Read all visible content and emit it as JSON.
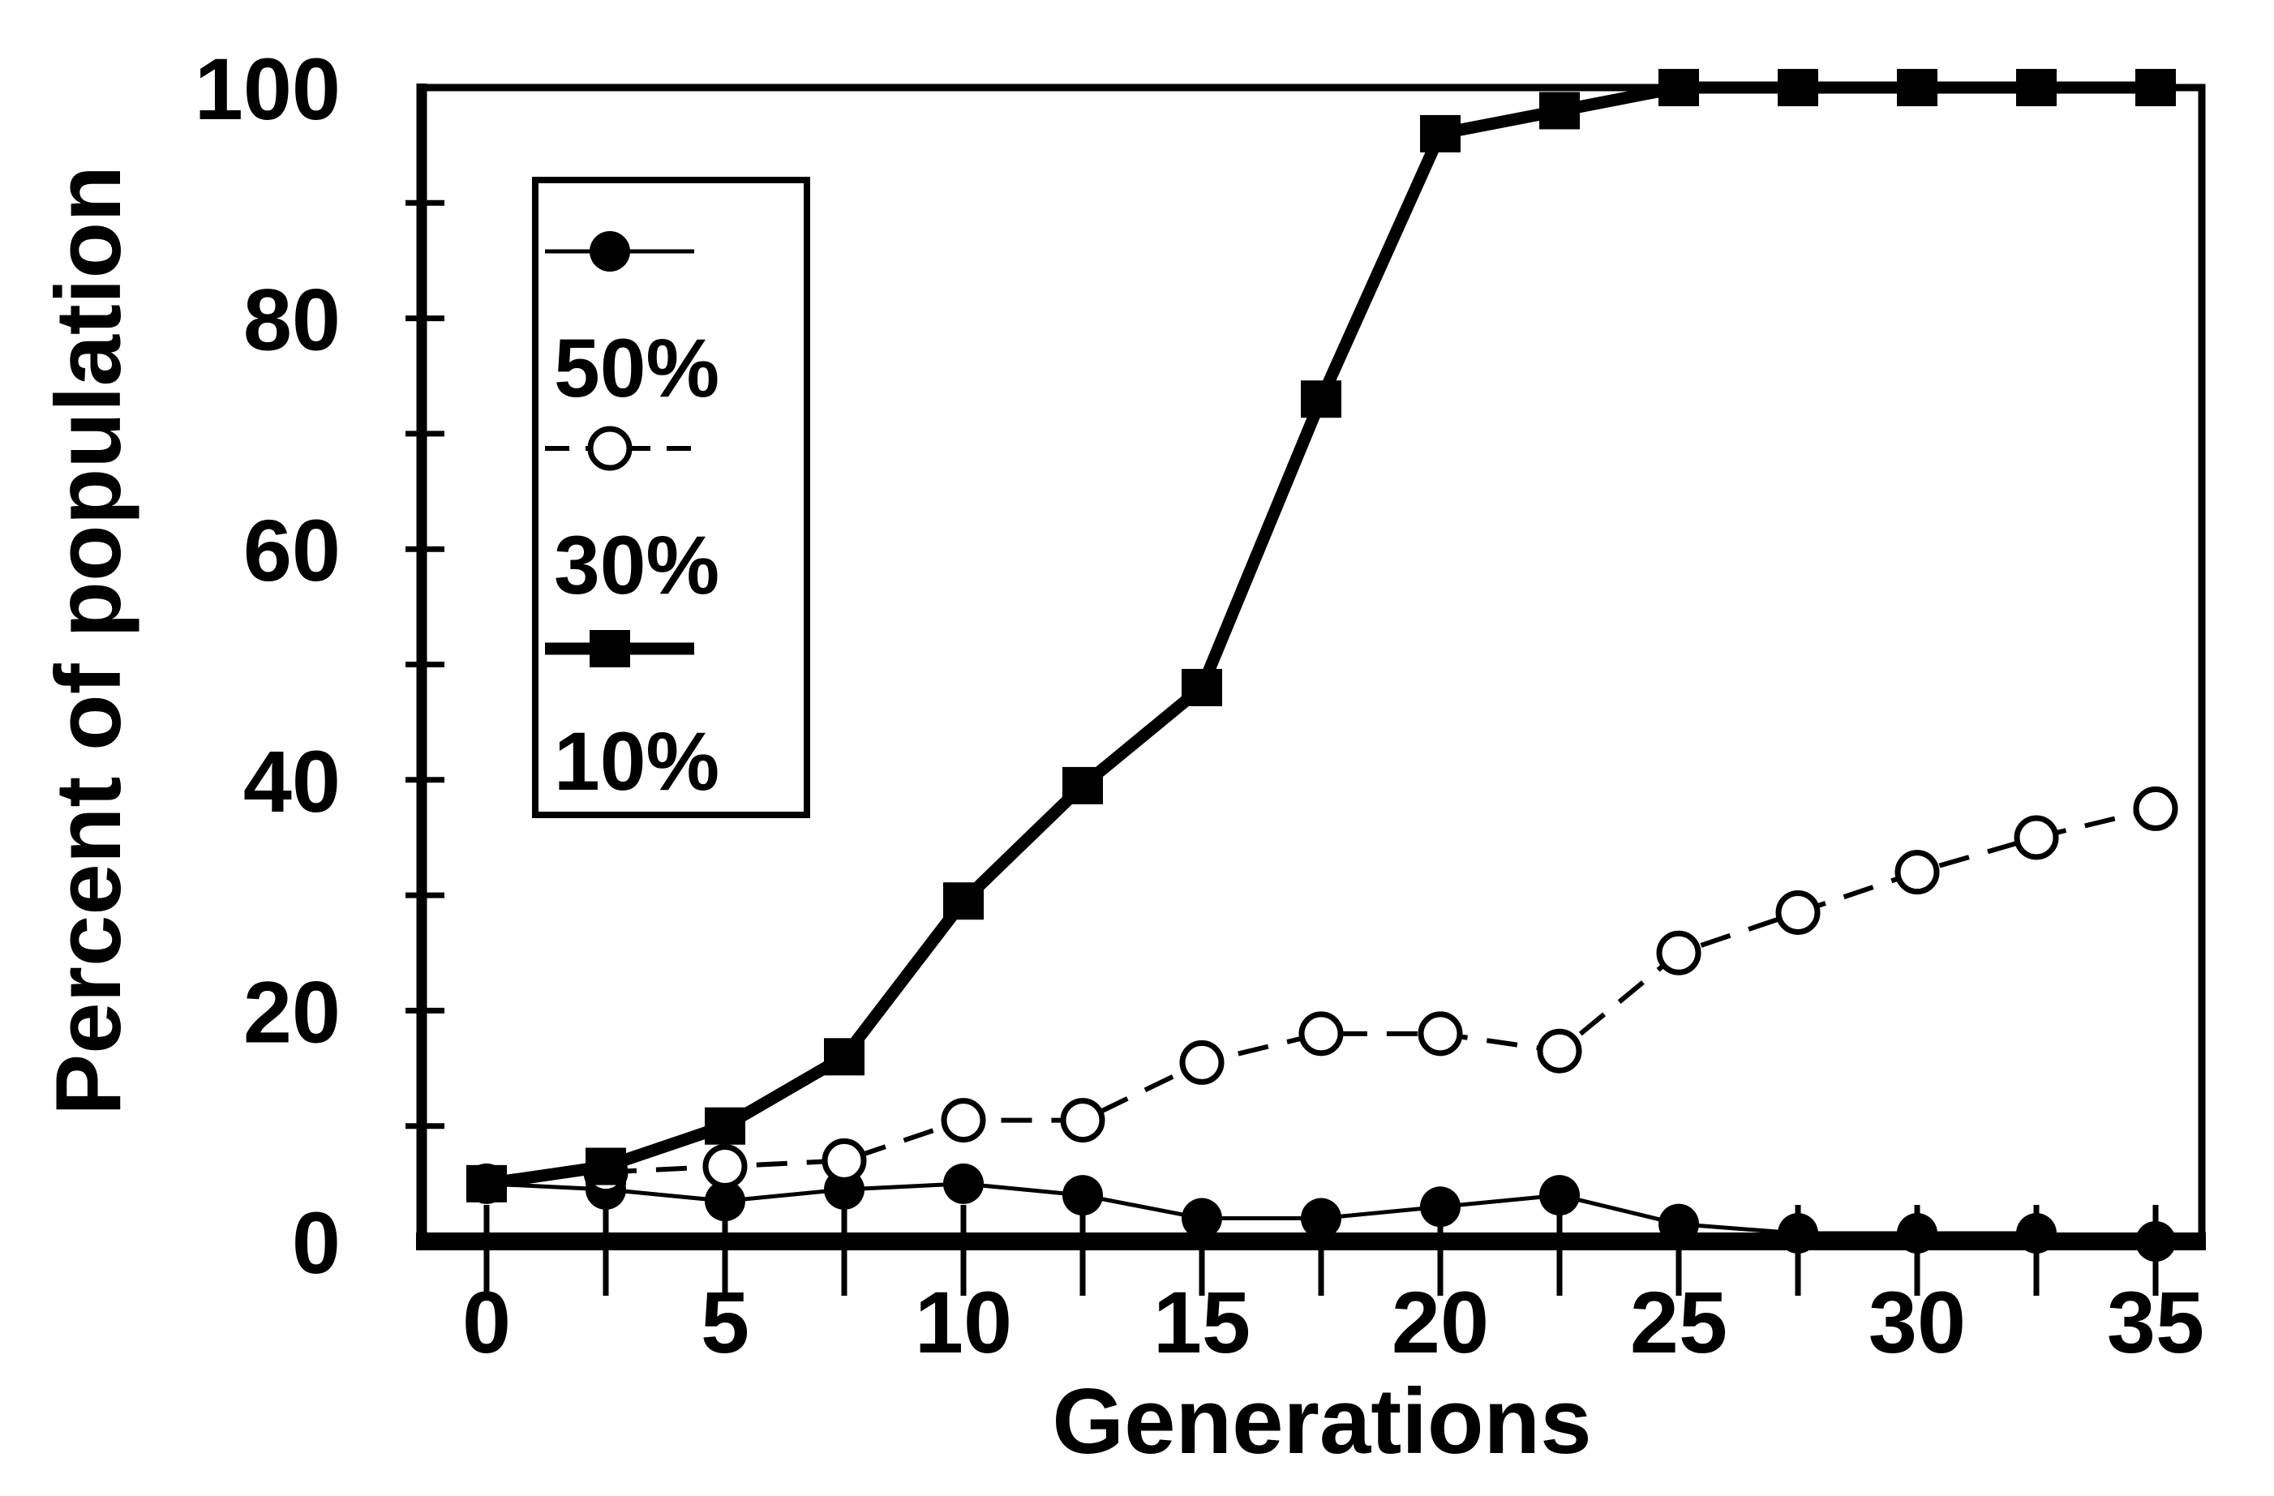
{
  "figure": {
    "background_color": "#ffffff",
    "ink_color": "#000000"
  },
  "chart_data": {
    "type": "line",
    "title": "",
    "xlabel": "Generations",
    "ylabel": "Percent of population",
    "xlim": [
      0,
      35
    ],
    "ylim": [
      0,
      100
    ],
    "grid": false,
    "x_tick_interval": 2.5,
    "x_tick_labels": [
      0,
      5,
      10,
      15,
      20,
      25,
      30,
      35
    ],
    "y_tick_interval": 10,
    "y_tick_labels": [
      0,
      20,
      40,
      60,
      80,
      100
    ],
    "legend": {
      "position": "upper-left-inside",
      "entries": [
        "50%",
        "30%",
        "10%"
      ]
    },
    "series": [
      {
        "name": "50%",
        "marker": "filled-circle",
        "line_style": "solid-thin",
        "x": [
          0,
          2.5,
          5,
          7.5,
          10,
          12.5,
          15,
          17.5,
          20,
          22.5,
          25,
          27.5,
          30,
          32.5,
          35
        ],
        "y": [
          5,
          4.5,
          3.5,
          4.5,
          5,
          4,
          2,
          2,
          3,
          4,
          1.5,
          0.7,
          0.7,
          0.7,
          0
        ]
      },
      {
        "name": "30%",
        "marker": "open-circle",
        "line_style": "dashed",
        "x": [
          2.5,
          5,
          7.5,
          10,
          12.5,
          15,
          17.5,
          20,
          22.5,
          25,
          27.5,
          30,
          32.5,
          35
        ],
        "y": [
          6,
          6.5,
          7,
          10.5,
          10.5,
          15.5,
          18,
          18,
          16.5,
          25,
          28.5,
          32,
          35,
          37.5
        ]
      },
      {
        "name": "10%",
        "marker": "filled-square",
        "line_style": "solid-thick",
        "x": [
          0,
          2.5,
          5,
          7.5,
          10,
          12.5,
          15,
          17.5,
          20,
          22.5,
          25,
          27.5,
          30,
          32.5,
          35
        ],
        "y": [
          5,
          6.5,
          10,
          16,
          29.5,
          39.5,
          48,
          73,
          96,
          98,
          100,
          100,
          100,
          100,
          100
        ]
      }
    ]
  }
}
